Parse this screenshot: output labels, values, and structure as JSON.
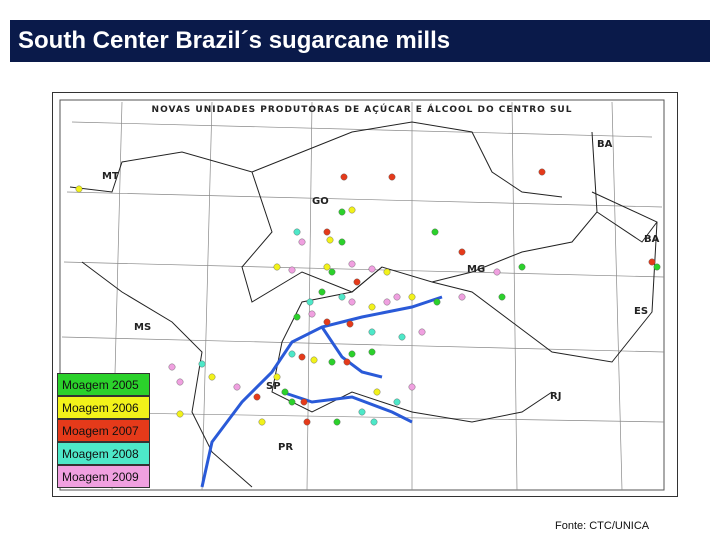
{
  "title": "South Center Brazil´s  sugarcane mills",
  "map": {
    "title": "NOVAS UNIDADES PRODUTORAS DE AÇÚCAR E ÁLCOOL DO CENTRO SUL",
    "states": [
      "MT",
      "GO",
      "BA",
      "BA",
      "MG",
      "ES",
      "MS",
      "SP",
      "RJ",
      "PR"
    ]
  },
  "legend": [
    {
      "label": "Moagem 2005",
      "color": "#2bd12b"
    },
    {
      "label": "Moagem 2006",
      "color": "#f2f21a"
    },
    {
      "label": "Moagem 2007",
      "color": "#e53a1a"
    },
    {
      "label": "Moagem 2008",
      "color": "#4de8c8"
    },
    {
      "label": "Moagem 2009",
      "color": "#f0a0e0"
    }
  ],
  "source": "Fonte: CTC/UNICA"
}
